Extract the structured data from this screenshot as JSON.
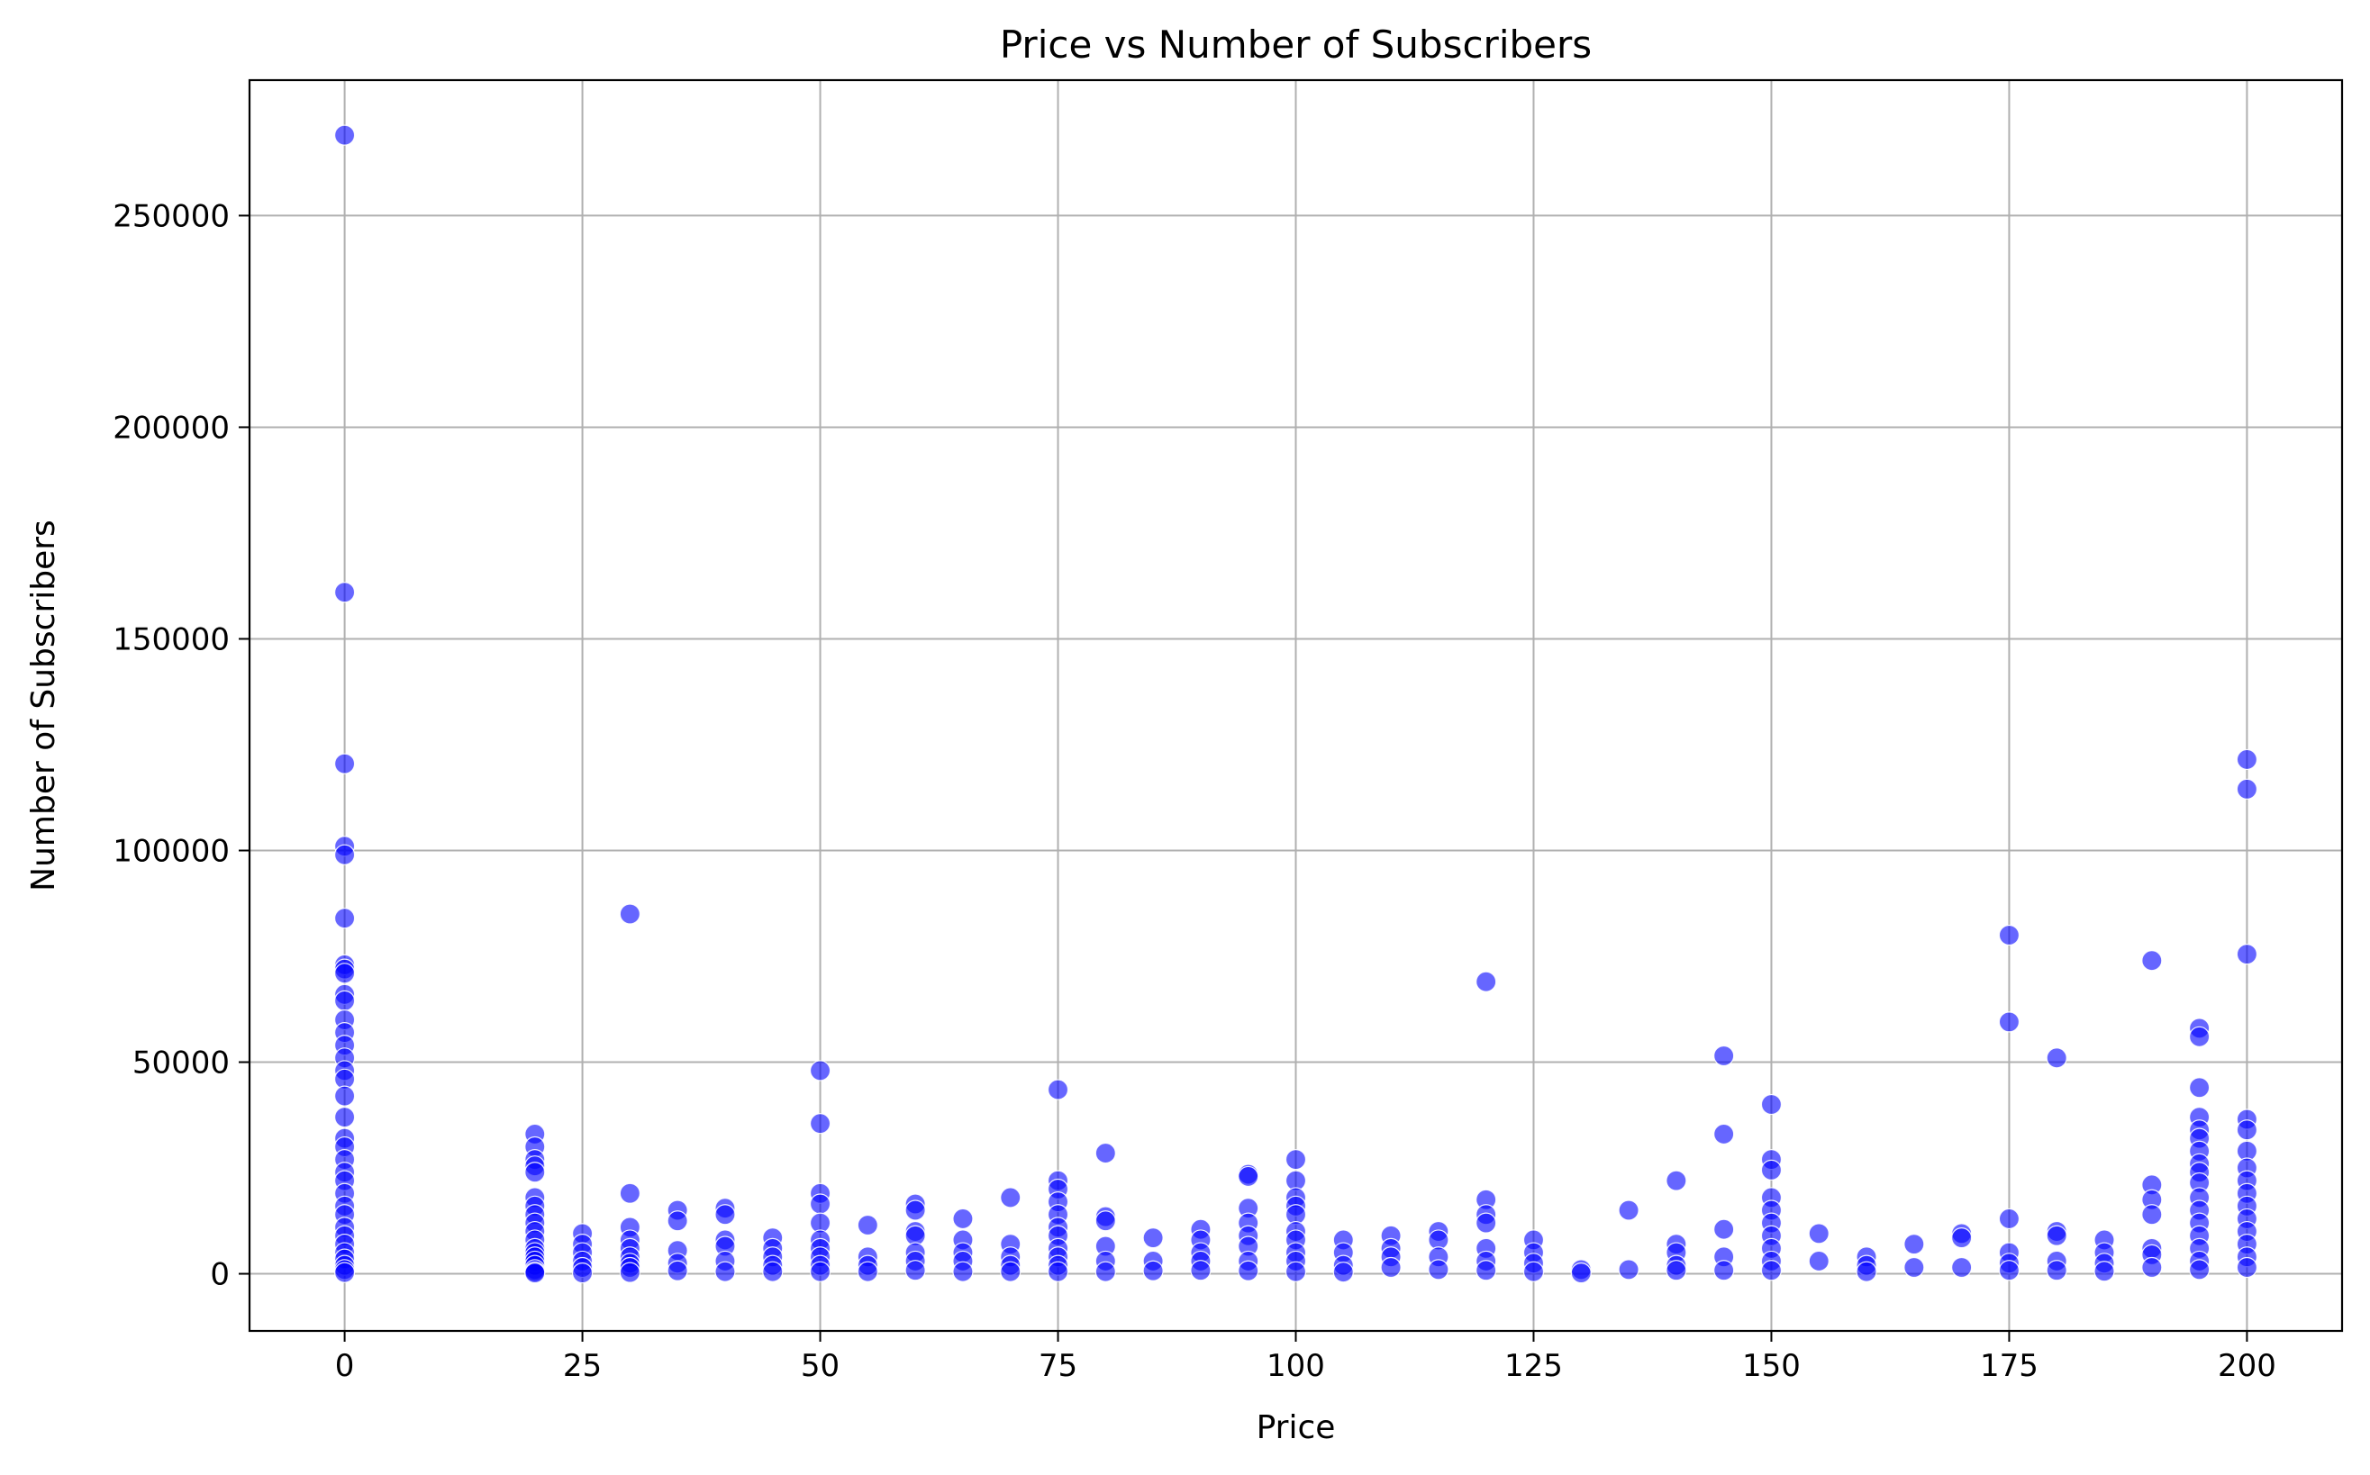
{
  "chart_data": {
    "type": "scatter",
    "title": "Price vs Number of Subscribers",
    "xlabel": "Price",
    "ylabel": "Number of Subscribers",
    "xlim": [
      -10,
      210
    ],
    "ylim": [
      -13500,
      282000
    ],
    "xticks": [
      0,
      25,
      50,
      75,
      100,
      125,
      150,
      175,
      200
    ],
    "yticks": [
      0,
      50000,
      100000,
      150000,
      200000,
      250000
    ],
    "xtick_labels": [
      "0",
      "25",
      "50",
      "75",
      "100",
      "125",
      "150",
      "175",
      "200"
    ],
    "ytick_labels": [
      "0",
      "50000",
      "100000",
      "150000",
      "200000",
      "250000"
    ],
    "grid": true,
    "marker_color": "#0000ff",
    "marker_alpha": 0.6,
    "series": [
      {
        "x": [
          0,
          0,
          0,
          0,
          0,
          0,
          0,
          0,
          0,
          0,
          0,
          0,
          0,
          0,
          0,
          0,
          0,
          0,
          0,
          0,
          0,
          0,
          0,
          0,
          0,
          0,
          0,
          0,
          0,
          0,
          0,
          0,
          0,
          0,
          0,
          20,
          20,
          20,
          20,
          20,
          20,
          20,
          20,
          20,
          20,
          20,
          20,
          20,
          20,
          20,
          20,
          20,
          20,
          20,
          25,
          25,
          25,
          25,
          25,
          25,
          30,
          30,
          30,
          30,
          30,
          30,
          30,
          30,
          30,
          35,
          35,
          35,
          35,
          35,
          40,
          40,
          40,
          40,
          40,
          40,
          45,
          45,
          45,
          45,
          45,
          50,
          50,
          50,
          50,
          50,
          50,
          50,
          50,
          50,
          50,
          55,
          55,
          55,
          55,
          60,
          60,
          60,
          60,
          60,
          60,
          60,
          65,
          65,
          65,
          65,
          65,
          70,
          70,
          70,
          70,
          70,
          75,
          75,
          75,
          75,
          75,
          75,
          75,
          75,
          75,
          75,
          75,
          80,
          80,
          80,
          80,
          80,
          80,
          85,
          85,
          85,
          90,
          90,
          90,
          90,
          90,
          95,
          95,
          95,
          95,
          95,
          95,
          95,
          95,
          100,
          100,
          100,
          100,
          100,
          100,
          100,
          100,
          100,
          100,
          105,
          105,
          105,
          105,
          110,
          110,
          110,
          110,
          115,
          115,
          115,
          115,
          120,
          120,
          120,
          120,
          120,
          120,
          120,
          125,
          125,
          125,
          125,
          130,
          130,
          135,
          135,
          140,
          140,
          140,
          140,
          140,
          145,
          145,
          145,
          145,
          145,
          150,
          150,
          150,
          150,
          150,
          150,
          150,
          150,
          150,
          150,
          155,
          155,
          160,
          160,
          160,
          165,
          165,
          170,
          170,
          170,
          175,
          175,
          175,
          175,
          175,
          175,
          180,
          180,
          180,
          180,
          180,
          185,
          185,
          185,
          185,
          190,
          190,
          190,
          190,
          190,
          190,
          190,
          195,
          195,
          195,
          195,
          195,
          195,
          195,
          195,
          195,
          195,
          195,
          195,
          195,
          195,
          195,
          195,
          195,
          200,
          200,
          200,
          200,
          200,
          200,
          200,
          200,
          200,
          200,
          200,
          200,
          200,
          200,
          200
        ],
        "y": [
          269000,
          161000,
          120500,
          101000,
          99000,
          84000,
          73000,
          72000,
          71000,
          66000,
          64500,
          60000,
          57000,
          54000,
          51000,
          48000,
          46000,
          42000,
          37000,
          32000,
          30000,
          27000,
          24000,
          22000,
          19000,
          16000,
          14000,
          11000,
          9000,
          7000,
          5000,
          3500,
          2000,
          1000,
          300,
          33000,
          30000,
          27000,
          25500,
          24000,
          18000,
          16000,
          14000,
          12000,
          10000,
          8000,
          6000,
          5000,
          4000,
          3000,
          2000,
          1000,
          500,
          200,
          9500,
          7000,
          5000,
          3000,
          1500,
          200,
          85000,
          19000,
          11000,
          8000,
          6000,
          4000,
          2500,
          1500,
          300,
          15000,
          12500,
          5500,
          2500,
          700,
          15500,
          14000,
          8000,
          6500,
          3000,
          500,
          8500,
          6000,
          4000,
          2000,
          500,
          48000,
          35500,
          19000,
          16500,
          12000,
          8000,
          6000,
          4000,
          2000,
          500,
          11500,
          4000,
          2000,
          500,
          16500,
          15000,
          10000,
          9000,
          5000,
          3000,
          800,
          13000,
          8000,
          5000,
          3000,
          500,
          18000,
          7000,
          4000,
          2000,
          500,
          43500,
          22000,
          20000,
          17000,
          14000,
          11000,
          9000,
          6000,
          4000,
          2000,
          500,
          28500,
          13500,
          12500,
          6500,
          3000,
          500,
          8500,
          3000,
          700,
          10500,
          8000,
          5000,
          3000,
          800,
          23500,
          23000,
          15500,
          12000,
          9000,
          6500,
          3000,
          700,
          27000,
          22000,
          18000,
          16000,
          14000,
          10000,
          8000,
          5000,
          3000,
          500,
          8000,
          5000,
          2000,
          400,
          9000,
          6000,
          4000,
          1500,
          10000,
          8000,
          4000,
          1000,
          69000,
          17500,
          14000,
          12000,
          6000,
          3000,
          800,
          8000,
          5000,
          2500,
          500,
          1000,
          200,
          15000,
          1000,
          22000,
          7000,
          5000,
          2000,
          800,
          51500,
          33000,
          10500,
          4000,
          800,
          40000,
          27000,
          24500,
          18000,
          15000,
          12000,
          9000,
          6000,
          3000,
          800,
          9500,
          3000,
          4000,
          2000,
          500,
          7000,
          1500,
          9500,
          8500,
          1500,
          80000,
          59500,
          13000,
          5000,
          2500,
          800,
          51000,
          10000,
          9000,
          3000,
          800,
          8000,
          5000,
          2500,
          600,
          74000,
          21000,
          17500,
          14000,
          6000,
          4500,
          1500,
          58000,
          56000,
          44000,
          37000,
          34000,
          32000,
          29000,
          26000,
          24000,
          21500,
          18000,
          15000,
          12000,
          9000,
          6000,
          3000,
          1000,
          121500,
          114500,
          75500,
          36500,
          34000,
          29000,
          25000,
          22000,
          19000,
          16000,
          13000,
          10000,
          7000,
          4000,
          1500
        ]
      }
    ]
  }
}
